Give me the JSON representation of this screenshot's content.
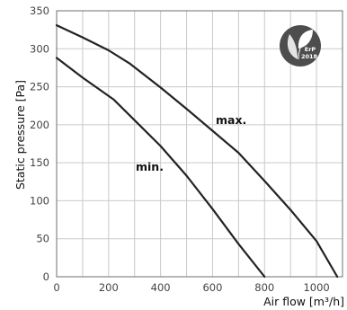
{
  "chart_data": {
    "type": "line",
    "xlabel": "Air flow [m³/h]",
    "ylabel": "Static pressure [Pa]",
    "xlim": [
      0,
      1100
    ],
    "ylim": [
      0,
      350
    ],
    "x_ticks": [
      "0",
      "200",
      "400",
      "600",
      "800",
      "1000"
    ],
    "y_ticks": [
      "0",
      "50",
      "100",
      "150",
      "200",
      "250",
      "300",
      "350"
    ],
    "grid": true,
    "series": [
      {
        "name": "max.",
        "x": [
          0,
          100,
          200,
          280,
          400,
          500,
          600,
          700,
          800,
          900,
          1000,
          1080
        ],
        "y": [
          331,
          315,
          298,
          281,
          249,
          221,
          192,
          163,
          126,
          88,
          47,
          0
        ],
        "color": "#222222"
      },
      {
        "name": "min.",
        "x": [
          0,
          100,
          220,
          300,
          400,
          500,
          600,
          700,
          800
        ],
        "y": [
          288,
          262,
          233,
          206,
          172,
          133,
          89,
          43,
          0
        ],
        "color": "#222222"
      }
    ],
    "badge": {
      "icon": "erp-leaf-icon",
      "line1": "ErP",
      "line2": "2018",
      "color": "#4d4d4d"
    }
  }
}
